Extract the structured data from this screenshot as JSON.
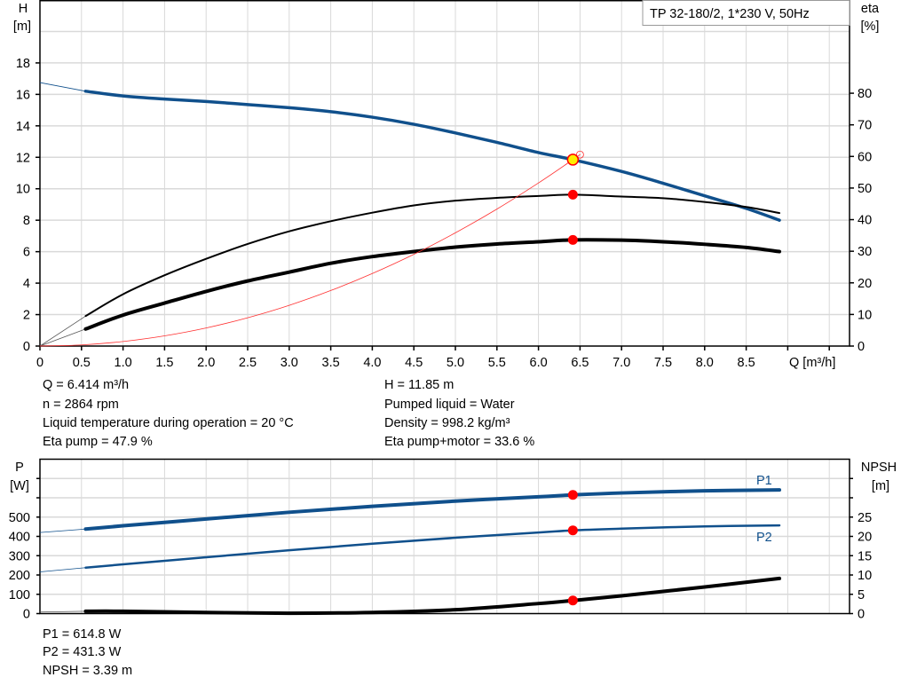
{
  "header": {
    "title": "TP 32-180/2, 1*230 V, 50Hz"
  },
  "info_top": {
    "left": [
      "Q = 6.414 m³/h",
      "n = 2864 rpm",
      "Liquid temperature during operation = 20 °C",
      "Eta pump = 47.9 %"
    ],
    "right": [
      "H = 11.85 m",
      "Pumped liquid = Water",
      "Density = 998.2 kg/m³",
      "Eta pump+motor = 33.6 %"
    ]
  },
  "info_bottom": [
    "P1 = 614.8 W",
    "P2 = 431.3 W",
    "NPSH = 3.39 m"
  ],
  "colors": {
    "head": "#10508c",
    "efficiency": "#000000",
    "system": "#ff3030",
    "operating_point": "#ff0000",
    "operating_point_fill": "#ffee00",
    "power": "#10508c",
    "npsh": "#000000",
    "grid": "#d9d9d9"
  },
  "chart_data": [
    {
      "type": "line",
      "ylabel": [
        "H",
        "[m]"
      ],
      "y2label": [
        "eta",
        "[%]"
      ],
      "xlabel": "Q [m³/h]",
      "xlim": [
        0,
        9.5
      ],
      "ylim": [
        0,
        22
      ],
      "y2lim": [
        0,
        109.5
      ],
      "grid": true,
      "x_ticks": [
        "0",
        "0.5",
        "1.0",
        "1.5",
        "2.0",
        "2.5",
        "3.0",
        "3.5",
        "4.0",
        "4.5",
        "5.0",
        "5.5",
        "6.0",
        "6.5",
        "7.0",
        "7.5",
        "8.0",
        "8.5"
      ],
      "y_ticks": [
        "0",
        "2",
        "4",
        "6",
        "8",
        "10",
        "12",
        "14",
        "16",
        "18"
      ],
      "y2_ticks": [
        "0",
        "10",
        "20",
        "30",
        "40",
        "50",
        "60",
        "70",
        "80"
      ],
      "series": [
        {
          "axis": "left",
          "color": "#10508c",
          "width": 3.5,
          "x": [
            0.55,
            1.0,
            1.5,
            2.0,
            2.5,
            3.0,
            3.5,
            4.0,
            4.5,
            5.0,
            5.5,
            6.0,
            6.414,
            7.0,
            7.5,
            8.0,
            8.5,
            8.9
          ],
          "y": [
            16.2,
            15.9,
            15.7,
            15.55,
            15.35,
            15.15,
            14.9,
            14.55,
            14.1,
            13.55,
            12.95,
            12.3,
            11.85,
            11.1,
            10.35,
            9.55,
            8.75,
            8.0
          ],
          "extension": {
            "x": [
              0,
              0.55
            ],
            "y": [
              16.75,
              16.2
            ]
          }
        },
        {
          "axis": "right",
          "color": "#000000",
          "width": 2,
          "x": [
            0.55,
            1.0,
            1.5,
            2.0,
            2.5,
            3.0,
            3.5,
            4.0,
            4.5,
            5.0,
            5.5,
            6.0,
            6.414,
            7.0,
            7.5,
            8.0,
            8.5,
            8.9
          ],
          "y": [
            9.5,
            16.4,
            22.4,
            27.6,
            32.3,
            36.3,
            39.5,
            42.2,
            44.5,
            46.0,
            46.9,
            47.5,
            47.9,
            47.3,
            46.8,
            45.6,
            44.0,
            42.1
          ],
          "extension": {
            "x": [
              0,
              0.55
            ],
            "y": [
              0,
              9.5
            ]
          }
        },
        {
          "axis": "right",
          "color": "#000000",
          "width": 4,
          "x": [
            0.55,
            1.0,
            1.5,
            2.0,
            2.5,
            3.0,
            3.5,
            4.0,
            4.5,
            5.0,
            5.5,
            6.0,
            6.414,
            7.0,
            7.5,
            8.0,
            8.5,
            8.9
          ],
          "y": [
            5.4,
            9.8,
            13.6,
            17.3,
            20.6,
            23.4,
            26.2,
            28.3,
            29.9,
            31.3,
            32.3,
            33.0,
            33.6,
            33.5,
            33.0,
            32.2,
            31.2,
            29.9
          ],
          "extension": {
            "x": [
              0,
              0.55
            ],
            "y": [
              0,
              5.4
            ]
          }
        },
        {
          "axis": "left",
          "color": "#ff3030",
          "width": 0.8,
          "kind": "system-curve",
          "x": [
            0,
            0.5,
            1.0,
            1.5,
            2.0,
            2.5,
            3.0,
            3.5,
            4.0,
            4.5,
            5.0,
            5.5,
            6.0,
            6.414,
            6.5
          ],
          "y": [
            0,
            0.07,
            0.29,
            0.65,
            1.15,
            1.8,
            2.59,
            3.53,
            4.61,
            5.83,
            7.2,
            8.71,
            10.37,
            11.85,
            12.17
          ]
        }
      ],
      "operating_point": {
        "Q": 6.414,
        "H": 11.85,
        "eta_pump": 47.9,
        "eta_total": 33.6
      }
    },
    {
      "type": "line",
      "ylabel": [
        "P",
        "[W]"
      ],
      "y2label": [
        "NPSH",
        "[m]"
      ],
      "xlim": [
        0,
        9.5
      ],
      "ylim": [
        0,
        800
      ],
      "y2lim": [
        0,
        40
      ],
      "grid": true,
      "y_ticks": [
        "0",
        "100",
        "200",
        "300",
        "400",
        "500"
      ],
      "y2_ticks": [
        "0",
        "5",
        "10",
        "15",
        "20",
        "25"
      ],
      "series": [
        {
          "name": "P1",
          "axis": "left",
          "color": "#10508c",
          "width": 4,
          "x": [
            0.55,
            1,
            2,
            3,
            4,
            5,
            6,
            6.414,
            7,
            8,
            8.9
          ],
          "y": [
            438,
            455,
            490,
            525,
            556,
            583,
            605,
            614.8,
            625,
            636,
            641
          ],
          "extension": {
            "x": [
              0,
              0.55
            ],
            "y": [
              420,
              438
            ]
          }
        },
        {
          "name": "P2",
          "axis": "left",
          "color": "#10508c",
          "width": 2.5,
          "x": [
            0.55,
            1,
            2,
            3,
            4,
            5,
            6,
            6.414,
            7,
            8,
            8.9
          ],
          "y": [
            238,
            255,
            292,
            328,
            362,
            393,
            420,
            431.3,
            440,
            452,
            457
          ],
          "extension": {
            "x": [
              0,
              0.55
            ],
            "y": [
              216,
              238
            ]
          }
        },
        {
          "axis": "right",
          "color": "#000000",
          "width": 4,
          "x": [
            0.55,
            1,
            2,
            3,
            4,
            5,
            6,
            6.414,
            7,
            8,
            8.9
          ],
          "y": [
            0.6,
            0.6,
            0.3,
            0.1,
            0.3,
            1.0,
            2.6,
            3.39,
            4.6,
            6.9,
            9.1
          ],
          "extension": {
            "x": [
              0,
              0.55
            ],
            "y": [
              0.4,
              0.6
            ]
          }
        }
      ],
      "operating_point": {
        "Q": 6.414,
        "P1": 614.8,
        "P2": 431.3,
        "NPSH": 3.39
      }
    }
  ]
}
